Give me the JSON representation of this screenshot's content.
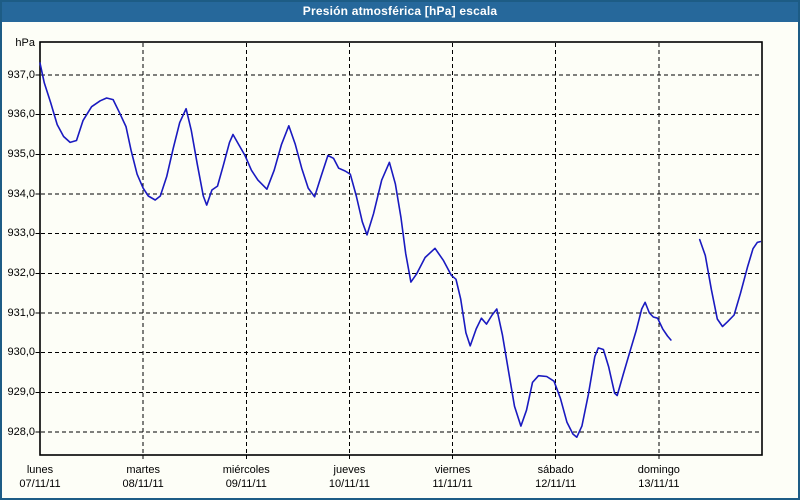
{
  "title": "Presión atmosférica [hPa] escala",
  "axes": {
    "y": {
      "unit": "hPa",
      "tick_labels": [
        "937,0",
        "936,0",
        "935,0",
        "934,0",
        "933,0",
        "932,0",
        "931,0",
        "930,0",
        "929,0",
        "928,0"
      ],
      "tick_values": [
        937,
        936,
        935,
        934,
        933,
        932,
        931,
        930,
        929,
        928
      ]
    },
    "x": {
      "days": [
        {
          "name": "lunes",
          "date": "07/11/11"
        },
        {
          "name": "martes",
          "date": "08/11/11"
        },
        {
          "name": "miércoles",
          "date": "09/11/11"
        },
        {
          "name": "jueves",
          "date": "10/11/11"
        },
        {
          "name": "viernes",
          "date": "11/11/11"
        },
        {
          "name": "sábado",
          "date": "12/11/11"
        },
        {
          "name": "domingo",
          "date": "13/11/11"
        }
      ]
    }
  },
  "colors": {
    "titlebar": "#26689b",
    "window_border": "#1d5c85",
    "background": "#fdfef7",
    "line": "#1a1ac0",
    "grid": "#000000",
    "text": "#000000"
  },
  "chart_data": {
    "type": "line",
    "title": "Presión atmosférica [hPa] escala",
    "ylabel": "hPa",
    "ylim": [
      927.4,
      937.8
    ],
    "xlim_hours": [
      0,
      168
    ],
    "x_unit": "hours since lunes 07/11/11 00:00",
    "grid": true,
    "legend": "none",
    "note": "pressure trace has a data gap on domingo between ~03:00 and ~09:30",
    "series": [
      {
        "name": "Presión atmosférica [hPa]",
        "segments": [
          [
            [
              0,
              937.3
            ],
            [
              1,
              936.8
            ],
            [
              2.5,
              936.3
            ],
            [
              4,
              935.75
            ],
            [
              5.5,
              935.45
            ],
            [
              7,
              935.3
            ],
            [
              8.5,
              935.35
            ],
            [
              10,
              935.85
            ],
            [
              12,
              936.2
            ],
            [
              14,
              936.35
            ],
            [
              15.5,
              936.42
            ],
            [
              17,
              936.38
            ],
            [
              18.5,
              936.05
            ],
            [
              20,
              935.7
            ],
            [
              21.2,
              935.1
            ],
            [
              22.6,
              934.5
            ],
            [
              24,
              934.15
            ],
            [
              25.2,
              933.95
            ],
            [
              26.8,
              933.85
            ],
            [
              28,
              933.95
            ],
            [
              29.5,
              934.45
            ],
            [
              31,
              935.15
            ],
            [
              32.5,
              935.8
            ],
            [
              34,
              936.15
            ],
            [
              35.2,
              935.6
            ],
            [
              36.6,
              934.75
            ],
            [
              38,
              933.95
            ],
            [
              38.8,
              933.72
            ],
            [
              40,
              934.1
            ],
            [
              41.3,
              934.2
            ],
            [
              42.6,
              934.7
            ],
            [
              44.1,
              935.3
            ],
            [
              44.9,
              935.5
            ],
            [
              46.2,
              935.25
            ],
            [
              47.7,
              934.97
            ],
            [
              49.2,
              934.6
            ],
            [
              50.7,
              934.35
            ],
            [
              52.8,
              934.12
            ],
            [
              54.5,
              934.6
            ],
            [
              56.2,
              935.25
            ],
            [
              57.9,
              935.72
            ],
            [
              59.4,
              935.25
            ],
            [
              60.9,
              934.65
            ],
            [
              62.4,
              934.15
            ],
            [
              63.9,
              933.93
            ],
            [
              65.4,
              934.45
            ],
            [
              67,
              934.97
            ],
            [
              68.3,
              934.9
            ],
            [
              69.5,
              934.65
            ],
            [
              71,
              934.58
            ],
            [
              72.2,
              934.5
            ],
            [
              73.6,
              933.95
            ],
            [
              75,
              933.3
            ],
            [
              76.1,
              932.97
            ],
            [
              77.6,
              933.5
            ],
            [
              79.5,
              934.35
            ],
            [
              81.3,
              934.8
            ],
            [
              82.7,
              934.25
            ],
            [
              84,
              933.4
            ],
            [
              85.1,
              932.5
            ],
            [
              86.3,
              931.78
            ],
            [
              87.6,
              931.98
            ],
            [
              89.6,
              932.4
            ],
            [
              91.9,
              932.63
            ],
            [
              93.9,
              932.32
            ],
            [
              95.7,
              931.95
            ],
            [
              96.8,
              931.85
            ],
            [
              97.9,
              931.35
            ],
            [
              99.1,
              930.5
            ],
            [
              100.1,
              930.17
            ],
            [
              101.5,
              930.6
            ],
            [
              102.7,
              930.87
            ],
            [
              103.9,
              930.72
            ],
            [
              105.2,
              930.95
            ],
            [
              106.3,
              931.1
            ],
            [
              107.6,
              930.45
            ],
            [
              109,
              929.55
            ],
            [
              110.4,
              928.65
            ],
            [
              111.9,
              928.15
            ],
            [
              113.2,
              928.55
            ],
            [
              114.6,
              929.25
            ],
            [
              116,
              929.42
            ],
            [
              117.9,
              929.4
            ],
            [
              119.6,
              929.28
            ],
            [
              121.1,
              928.85
            ],
            [
              122.6,
              928.25
            ],
            [
              124,
              927.95
            ],
            [
              124.9,
              927.87
            ],
            [
              126.1,
              928.15
            ],
            [
              127.6,
              928.95
            ],
            [
              129.1,
              929.9
            ],
            [
              129.9,
              930.12
            ],
            [
              131.1,
              930.08
            ],
            [
              132.3,
              929.65
            ],
            [
              133.7,
              928.98
            ],
            [
              134.3,
              928.92
            ],
            [
              135.7,
              929.45
            ],
            [
              137.2,
              930.0
            ],
            [
              138.7,
              930.55
            ],
            [
              140,
              931.1
            ],
            [
              140.8,
              931.27
            ],
            [
              141.8,
              931.0
            ],
            [
              142.7,
              930.9
            ],
            [
              143.7,
              930.87
            ],
            [
              144.9,
              930.6
            ],
            [
              146,
              930.42
            ],
            [
              146.8,
              930.32
            ]
          ],
          [
            [
              153.5,
              932.85
            ],
            [
              154.8,
              932.45
            ],
            [
              156.2,
              931.6
            ],
            [
              157.6,
              930.85
            ],
            [
              158.8,
              930.66
            ],
            [
              160,
              930.78
            ],
            [
              161.5,
              930.95
            ],
            [
              163,
              931.5
            ],
            [
              164.6,
              932.15
            ],
            [
              165.9,
              932.62
            ],
            [
              166.9,
              932.78
            ],
            [
              167.6,
              932.8
            ]
          ]
        ]
      }
    ]
  }
}
